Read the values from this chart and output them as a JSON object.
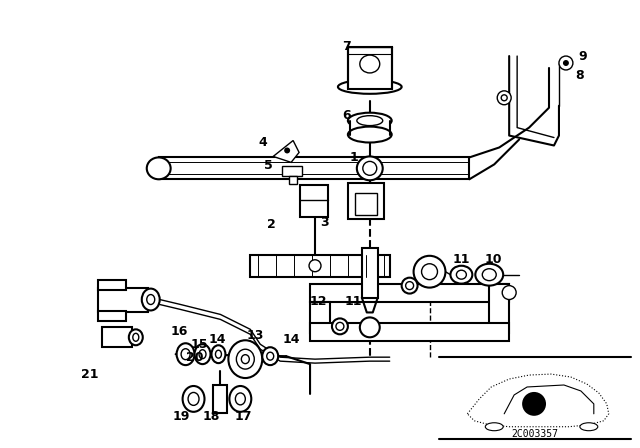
{
  "background_color": "#ffffff",
  "fig_width": 6.4,
  "fig_height": 4.48,
  "dpi": 100,
  "diagram_code_text": "2C003357",
  "label_fontsize": 9,
  "label_fontsize_small": 8
}
